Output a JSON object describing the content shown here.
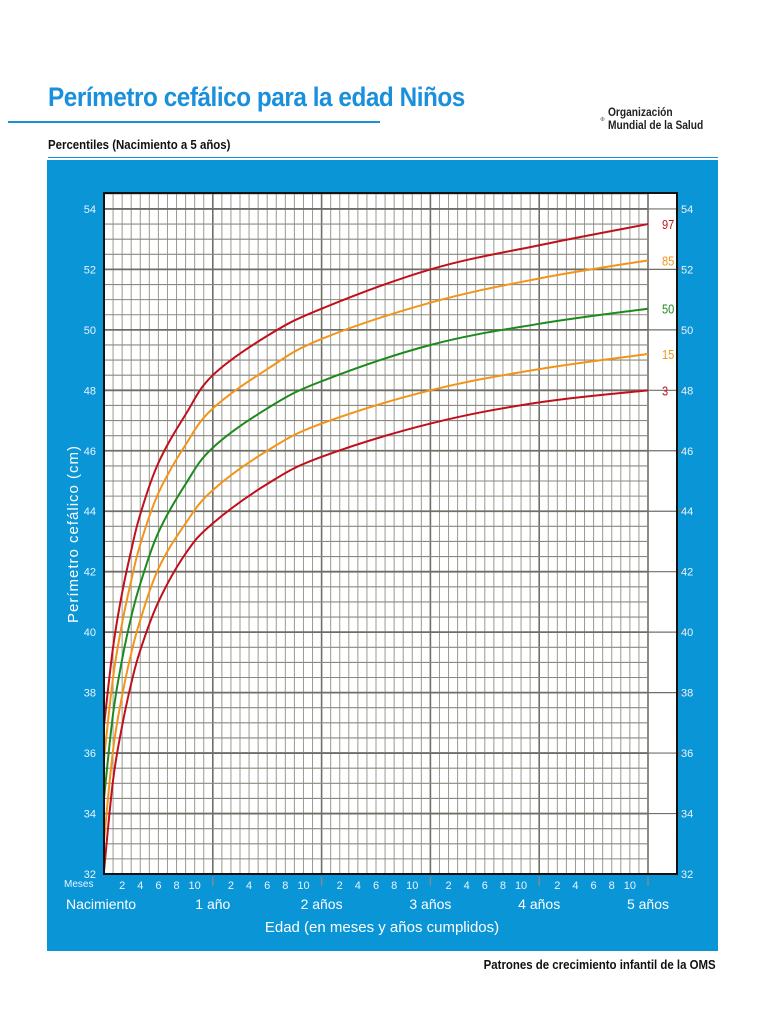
{
  "header": {
    "title": "Perímetro cefálico para la edad  Niños",
    "subtitle": "Percentiles (Nacimiento a 5 años)",
    "logo_text_line1": "Organización",
    "logo_text_line2": "Mundial de la Salud",
    "logo_icon": "who-emblem-icon"
  },
  "footer": {
    "text": "Patrones de crecimiento infantil de la OMS"
  },
  "colors": {
    "panel_blue": "#0a95d6",
    "title_blue": "#1a8fdc",
    "p3_p97_red": "#c0101c",
    "p15_p85_orange": "#f39419",
    "p50_green": "#1e8a1e",
    "grid": "#8a8a80"
  },
  "axis": {
    "y_label": "Perímetro cefálico (cm)",
    "x_label": "Edad (en meses y años cumplidos)",
    "months_label": "Meses",
    "y_ticks": [
      "32",
      "34",
      "36",
      "38",
      "40",
      "42",
      "44",
      "46",
      "48",
      "50",
      "52",
      "54"
    ],
    "month_ticks": [
      "2",
      "4",
      "6",
      "8",
      "10"
    ],
    "year_labels": [
      "Nacimiento",
      "1 año",
      "2 años",
      "3 años",
      "4 años",
      "5 años"
    ]
  },
  "chart_data": {
    "type": "line",
    "title": "Perímetro cefálico para la edad  Niños",
    "subtitle": "Percentiles (Nacimiento a 5 años)",
    "xlabel": "Edad (en meses y años cumplidos)",
    "ylabel": "Perímetro cefálico (cm)",
    "x_unit": "months",
    "xlim": [
      0,
      60
    ],
    "ylim": [
      32,
      54.5
    ],
    "grid": true,
    "legend_position": "inline-right",
    "x": [
      0,
      1,
      2,
      3,
      4,
      6,
      9,
      12,
      18,
      24,
      36,
      48,
      60
    ],
    "series": [
      {
        "name": "97",
        "color": "#c0101c",
        "values": [
          36.9,
          39.5,
          41.3,
          42.7,
          43.9,
          45.6,
          47.2,
          48.5,
          49.8,
          50.7,
          52.0,
          52.8,
          53.5
        ]
      },
      {
        "name": "85",
        "color": "#f39419",
        "values": [
          35.8,
          38.5,
          40.3,
          41.7,
          42.9,
          44.6,
          46.2,
          47.4,
          48.7,
          49.7,
          50.9,
          51.7,
          52.3
        ]
      },
      {
        "name": "50",
        "color": "#1e8a1e",
        "values": [
          34.5,
          37.3,
          39.1,
          40.5,
          41.6,
          43.3,
          44.9,
          46.1,
          47.4,
          48.3,
          49.5,
          50.2,
          50.7
        ]
      },
      {
        "name": "15",
        "color": "#f39419",
        "values": [
          33.1,
          36.1,
          37.9,
          39.3,
          40.4,
          42.1,
          43.6,
          44.7,
          46.0,
          46.9,
          48.0,
          48.7,
          49.2
        ]
      },
      {
        "name": "3",
        "color": "#c0101c",
        "values": [
          32.1,
          35.1,
          36.9,
          38.3,
          39.4,
          41.0,
          42.6,
          43.6,
          44.9,
          45.8,
          46.9,
          47.6,
          48.0
        ]
      }
    ]
  }
}
